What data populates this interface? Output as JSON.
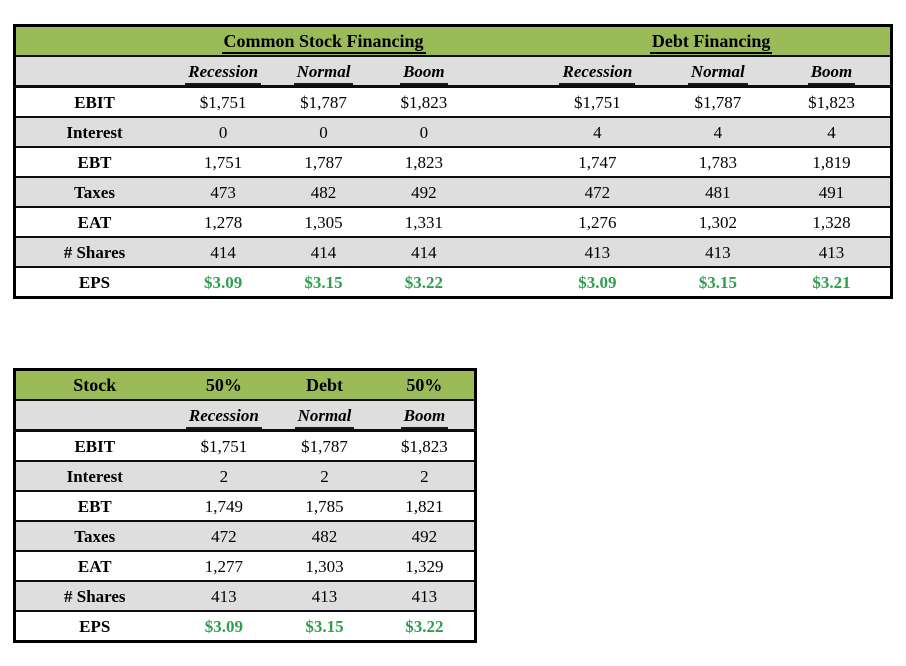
{
  "colors": {
    "header_green": "#9BBB59",
    "stripe_gray": "#DEDEDE",
    "row_white": "#FFFFFF",
    "border_black": "#000000",
    "eps_text_green": "#2F9E4E",
    "text_black": "#000000"
  },
  "table1": {
    "group_headers": [
      "Common Stock Financing",
      "Debt Financing"
    ],
    "column_headers": [
      "Recession",
      "Normal",
      "Boom",
      "Recession",
      "Normal",
      "Boom"
    ],
    "rows": [
      {
        "label": "EBIT",
        "stock": [
          "$1,751",
          "$1,787",
          "$1,823"
        ],
        "debt": [
          "$1,751",
          "$1,787",
          "$1,823"
        ],
        "shaded": false,
        "eps_highlight": false
      },
      {
        "label": "Interest",
        "stock": [
          "0",
          "0",
          "0"
        ],
        "debt": [
          "4",
          "4",
          "4"
        ],
        "shaded": true,
        "eps_highlight": false
      },
      {
        "label": "EBT",
        "stock": [
          "1,751",
          "1,787",
          "1,823"
        ],
        "debt": [
          "1,747",
          "1,783",
          "1,819"
        ],
        "shaded": false,
        "eps_highlight": false
      },
      {
        "label": "Taxes",
        "stock": [
          "473",
          "482",
          "492"
        ],
        "debt": [
          "472",
          "481",
          "491"
        ],
        "shaded": true,
        "eps_highlight": false
      },
      {
        "label": "EAT",
        "stock": [
          "1,278",
          "1,305",
          "1,331"
        ],
        "debt": [
          "1,276",
          "1,302",
          "1,328"
        ],
        "shaded": false,
        "eps_highlight": false
      },
      {
        "label": "# Shares",
        "stock": [
          "414",
          "414",
          "414"
        ],
        "debt": [
          "413",
          "413",
          "413"
        ],
        "shaded": true,
        "eps_highlight": false
      },
      {
        "label": "EPS",
        "stock": [
          "$3.09",
          "$3.15",
          "$3.22"
        ],
        "debt": [
          "$3.09",
          "$3.15",
          "$3.21"
        ],
        "shaded": false,
        "eps_highlight": true
      }
    ]
  },
  "table2": {
    "header_cells": [
      "Stock",
      "50%",
      "Debt",
      "50%"
    ],
    "column_headers": [
      "Recession",
      "Normal",
      "Boom"
    ],
    "rows": [
      {
        "label": "EBIT",
        "values": [
          "$1,751",
          "$1,787",
          "$1,823"
        ],
        "shaded": false,
        "eps_highlight": false
      },
      {
        "label": "Interest",
        "values": [
          "2",
          "2",
          "2"
        ],
        "shaded": true,
        "eps_highlight": false
      },
      {
        "label": "EBT",
        "values": [
          "1,749",
          "1,785",
          "1,821"
        ],
        "shaded": false,
        "eps_highlight": false
      },
      {
        "label": "Taxes",
        "values": [
          "472",
          "482",
          "492"
        ],
        "shaded": true,
        "eps_highlight": false
      },
      {
        "label": "EAT",
        "values": [
          "1,277",
          "1,303",
          "1,329"
        ],
        "shaded": false,
        "eps_highlight": false
      },
      {
        "label": "# Shares",
        "values": [
          "413",
          "413",
          "413"
        ],
        "shaded": true,
        "eps_highlight": false
      },
      {
        "label": "EPS",
        "values": [
          "$3.09",
          "$3.15",
          "$3.22"
        ],
        "shaded": false,
        "eps_highlight": true
      }
    ]
  }
}
